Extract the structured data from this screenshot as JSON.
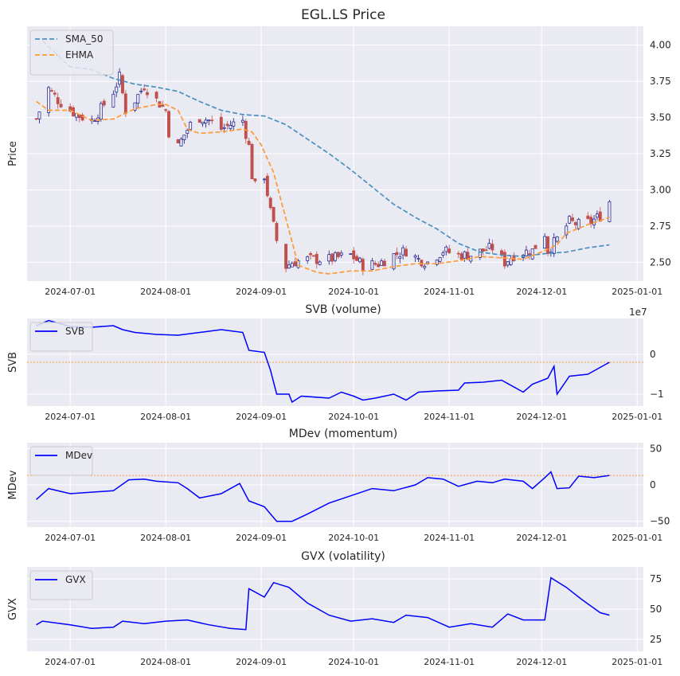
{
  "chart_data": [
    {
      "type": "candlestick",
      "title": "EGL.LS Price",
      "ylabel": "Price",
      "xlim": [
        "2024-06-17",
        "2025-01-03"
      ],
      "ylim": [
        2.37,
        4.13
      ],
      "x_ticks": [
        "2024-07-01",
        "2024-08-01",
        "2024-09-01",
        "2024-10-01",
        "2024-11-01",
        "2024-12-01",
        "2025-01-01"
      ],
      "y_ticks": [
        "2.50",
        "2.75",
        "3.00",
        "3.25",
        "3.50",
        "3.75",
        "4.00"
      ],
      "y_tick_values": [
        2.5,
        2.75,
        3.0,
        3.25,
        3.5,
        3.75,
        4.0
      ],
      "grid": true,
      "legend_position": "top-left",
      "colors": {
        "up": "#1a1a8c",
        "down": "#c0504d",
        "sma": "#4a90c2",
        "ehma": "#ff9933",
        "background": "#eaeaf2"
      },
      "close_knots": [
        [
          "2024-06-20",
          3.49
        ],
        [
          "2024-06-24",
          3.7
        ],
        [
          "2024-06-27",
          3.62
        ],
        [
          "2024-07-01",
          3.55
        ],
        [
          "2024-07-04",
          3.51
        ],
        [
          "2024-07-08",
          3.48
        ],
        [
          "2024-07-11",
          3.56
        ],
        [
          "2024-07-15",
          3.68
        ],
        [
          "2024-07-17",
          3.78
        ],
        [
          "2024-07-19",
          3.55
        ],
        [
          "2024-07-22",
          3.62
        ],
        [
          "2024-07-25",
          3.72
        ],
        [
          "2024-07-29",
          3.62
        ],
        [
          "2024-08-01",
          3.55
        ],
        [
          "2024-08-02",
          3.4
        ],
        [
          "2024-08-05",
          3.3
        ],
        [
          "2024-08-07",
          3.38
        ],
        [
          "2024-08-09",
          3.45
        ],
        [
          "2024-08-12",
          3.5
        ],
        [
          "2024-08-15",
          3.48
        ],
        [
          "2024-08-19",
          3.42
        ],
        [
          "2024-08-22",
          3.45
        ],
        [
          "2024-08-26",
          3.48
        ],
        [
          "2024-08-28",
          3.3
        ],
        [
          "2024-08-29",
          3.1
        ],
        [
          "2024-08-31",
          2.95
        ],
        [
          "2024-09-02",
          3.1
        ],
        [
          "2024-09-04",
          2.85
        ],
        [
          "2024-09-06",
          2.65
        ],
        [
          "2024-09-09",
          2.47
        ],
        [
          "2024-09-11",
          2.5
        ],
        [
          "2024-09-16",
          2.52
        ],
        [
          "2024-09-23",
          2.52
        ],
        [
          "2024-09-30",
          2.55
        ],
        [
          "2024-10-04",
          2.48
        ],
        [
          "2024-10-09",
          2.49
        ],
        [
          "2024-10-14",
          2.55
        ],
        [
          "2024-10-18",
          2.58
        ],
        [
          "2024-10-22",
          2.52
        ],
        [
          "2024-10-25",
          2.5
        ],
        [
          "2024-10-30",
          2.58
        ],
        [
          "2024-11-04",
          2.55
        ],
        [
          "2024-11-08",
          2.55
        ],
        [
          "2024-11-12",
          2.58
        ],
        [
          "2024-11-15",
          2.6
        ],
        [
          "2024-11-19",
          2.5
        ],
        [
          "2024-11-22",
          2.55
        ],
        [
          "2024-11-25",
          2.57
        ],
        [
          "2024-11-28",
          2.58
        ],
        [
          "2024-12-02",
          2.7
        ],
        [
          "2024-12-03",
          2.58
        ],
        [
          "2024-12-06",
          2.66
        ],
        [
          "2024-12-10",
          2.78
        ],
        [
          "2024-12-13",
          2.76
        ],
        [
          "2024-12-17",
          2.78
        ],
        [
          "2024-12-20",
          2.82
        ],
        [
          "2024-12-23",
          2.92
        ]
      ],
      "series": [
        {
          "name": "SMA_50",
          "style": "dashed",
          "points": [
            [
              "2024-06-22",
              4.03
            ],
            [
              "2024-07-01",
              3.85
            ],
            [
              "2024-07-08",
              3.83
            ],
            [
              "2024-07-15",
              3.77
            ],
            [
              "2024-07-22",
              3.73
            ],
            [
              "2024-07-29",
              3.71
            ],
            [
              "2024-08-05",
              3.68
            ],
            [
              "2024-08-12",
              3.61
            ],
            [
              "2024-08-19",
              3.55
            ],
            [
              "2024-08-26",
              3.52
            ],
            [
              "2024-09-02",
              3.51
            ],
            [
              "2024-09-09",
              3.45
            ],
            [
              "2024-09-16",
              3.35
            ],
            [
              "2024-09-23",
              3.25
            ],
            [
              "2024-09-30",
              3.14
            ],
            [
              "2024-10-07",
              3.02
            ],
            [
              "2024-10-14",
              2.9
            ],
            [
              "2024-10-21",
              2.81
            ],
            [
              "2024-10-28",
              2.73
            ],
            [
              "2024-11-04",
              2.63
            ],
            [
              "2024-11-11",
              2.57
            ],
            [
              "2024-11-18",
              2.55
            ],
            [
              "2024-11-25",
              2.54
            ],
            [
              "2024-12-02",
              2.56
            ],
            [
              "2024-12-09",
              2.57
            ],
            [
              "2024-12-16",
              2.6
            ],
            [
              "2024-12-23",
              2.62
            ]
          ]
        },
        {
          "name": "EHMA",
          "style": "dashed",
          "points": [
            [
              "2024-06-20",
              3.61
            ],
            [
              "2024-06-24",
              3.55
            ],
            [
              "2024-07-01",
              3.55
            ],
            [
              "2024-07-08",
              3.48
            ],
            [
              "2024-07-15",
              3.49
            ],
            [
              "2024-07-22",
              3.56
            ],
            [
              "2024-07-29",
              3.59
            ],
            [
              "2024-08-01",
              3.59
            ],
            [
              "2024-08-05",
              3.55
            ],
            [
              "2024-08-08",
              3.42
            ],
            [
              "2024-08-12",
              3.39
            ],
            [
              "2024-08-19",
              3.4
            ],
            [
              "2024-08-26",
              3.42
            ],
            [
              "2024-08-29",
              3.4
            ],
            [
              "2024-09-01",
              3.31
            ],
            [
              "2024-09-05",
              3.12
            ],
            [
              "2024-09-09",
              2.8
            ],
            [
              "2024-09-13",
              2.48
            ],
            [
              "2024-09-19",
              2.43
            ],
            [
              "2024-09-23",
              2.42
            ],
            [
              "2024-09-30",
              2.44
            ],
            [
              "2024-10-07",
              2.44
            ],
            [
              "2024-10-14",
              2.47
            ],
            [
              "2024-10-21",
              2.49
            ],
            [
              "2024-10-28",
              2.49
            ],
            [
              "2024-11-04",
              2.51
            ],
            [
              "2024-11-11",
              2.54
            ],
            [
              "2024-11-18",
              2.53
            ],
            [
              "2024-11-25",
              2.52
            ],
            [
              "2024-12-02",
              2.58
            ],
            [
              "2024-12-06",
              2.62
            ],
            [
              "2024-12-09",
              2.7
            ],
            [
              "2024-12-16",
              2.76
            ],
            [
              "2024-12-23",
              2.81
            ]
          ]
        }
      ]
    },
    {
      "type": "line",
      "title": "SVB (volume)",
      "ylabel": "SVB",
      "ylim": [
        -1.3,
        0.9
      ],
      "y_ticks": [
        "0",
        "−1"
      ],
      "y_tick_values": [
        0,
        -1
      ],
      "scale_label": "1e7",
      "reference_line": -0.2,
      "legend_position": "top-left",
      "series": [
        {
          "name": "SVB",
          "color": "#0000ff",
          "points": [
            [
              "2024-06-20",
              0.72
            ],
            [
              "2024-06-24",
              0.85
            ],
            [
              "2024-07-01",
              0.7
            ],
            [
              "2024-07-08",
              0.68
            ],
            [
              "2024-07-15",
              0.72
            ],
            [
              "2024-07-18",
              0.62
            ],
            [
              "2024-07-22",
              0.55
            ],
            [
              "2024-07-29",
              0.5
            ],
            [
              "2024-08-05",
              0.48
            ],
            [
              "2024-08-12",
              0.55
            ],
            [
              "2024-08-19",
              0.62
            ],
            [
              "2024-08-26",
              0.55
            ],
            [
              "2024-08-28",
              0.1
            ],
            [
              "2024-09-02",
              0.05
            ],
            [
              "2024-09-04",
              -0.4
            ],
            [
              "2024-09-06",
              -1.0
            ],
            [
              "2024-09-10",
              -1.0
            ],
            [
              "2024-09-11",
              -1.2
            ],
            [
              "2024-09-14",
              -1.05
            ],
            [
              "2024-09-23",
              -1.1
            ],
            [
              "2024-09-27",
              -0.95
            ],
            [
              "2024-10-01",
              -1.05
            ],
            [
              "2024-10-04",
              -1.15
            ],
            [
              "2024-10-08",
              -1.1
            ],
            [
              "2024-10-14",
              -1.0
            ],
            [
              "2024-10-18",
              -1.15
            ],
            [
              "2024-10-22",
              -0.95
            ],
            [
              "2024-10-28",
              -0.92
            ],
            [
              "2024-11-04",
              -0.9
            ],
            [
              "2024-11-06",
              -0.72
            ],
            [
              "2024-11-12",
              -0.7
            ],
            [
              "2024-11-18",
              -0.65
            ],
            [
              "2024-11-25",
              -0.95
            ],
            [
              "2024-11-28",
              -0.75
            ],
            [
              "2024-12-03",
              -0.6
            ],
            [
              "2024-12-05",
              -0.3
            ],
            [
              "2024-12-06",
              -1.0
            ],
            [
              "2024-12-10",
              -0.55
            ],
            [
              "2024-12-16",
              -0.5
            ],
            [
              "2024-12-23",
              -0.2
            ]
          ]
        }
      ]
    },
    {
      "type": "line",
      "title": "MDev (momentum)",
      "ylabel": "MDev",
      "ylim": [
        -58,
        58
      ],
      "y_ticks": [
        "50",
        "0",
        "−50"
      ],
      "y_tick_values": [
        50,
        0,
        -50
      ],
      "reference_line": 13,
      "legend_position": "top-left",
      "series": [
        {
          "name": "MDev",
          "color": "#0000ff",
          "points": [
            [
              "2024-06-20",
              -20
            ],
            [
              "2024-06-24",
              -5
            ],
            [
              "2024-07-01",
              -12
            ],
            [
              "2024-07-08",
              -10
            ],
            [
              "2024-07-15",
              -8
            ],
            [
              "2024-07-20",
              7
            ],
            [
              "2024-07-25",
              8
            ],
            [
              "2024-07-29",
              5
            ],
            [
              "2024-08-05",
              3
            ],
            [
              "2024-08-08",
              -5
            ],
            [
              "2024-08-12",
              -18
            ],
            [
              "2024-08-19",
              -12
            ],
            [
              "2024-08-25",
              2
            ],
            [
              "2024-08-28",
              -22
            ],
            [
              "2024-09-02",
              -30
            ],
            [
              "2024-09-06",
              -50
            ],
            [
              "2024-09-11",
              -50
            ],
            [
              "2024-09-16",
              -40
            ],
            [
              "2024-09-23",
              -25
            ],
            [
              "2024-09-30",
              -15
            ],
            [
              "2024-10-07",
              -5
            ],
            [
              "2024-10-14",
              -8
            ],
            [
              "2024-10-21",
              0
            ],
            [
              "2024-10-25",
              10
            ],
            [
              "2024-10-30",
              8
            ],
            [
              "2024-11-04",
              -2
            ],
            [
              "2024-11-10",
              5
            ],
            [
              "2024-11-15",
              3
            ],
            [
              "2024-11-19",
              8
            ],
            [
              "2024-11-25",
              5
            ],
            [
              "2024-11-28",
              -5
            ],
            [
              "2024-12-02",
              10
            ],
            [
              "2024-12-04",
              18
            ],
            [
              "2024-12-06",
              -5
            ],
            [
              "2024-12-10",
              -4
            ],
            [
              "2024-12-13",
              12
            ],
            [
              "2024-12-18",
              10
            ],
            [
              "2024-12-23",
              13
            ]
          ]
        }
      ]
    },
    {
      "type": "line",
      "title": "GVX (volatility)",
      "ylabel": "GVX",
      "ylim": [
        15,
        85
      ],
      "y_ticks": [
        "75",
        "50",
        "25"
      ],
      "y_tick_values": [
        75,
        50,
        25
      ],
      "legend_position": "top-left",
      "series": [
        {
          "name": "GVX",
          "color": "#0000ff",
          "points": [
            [
              "2024-06-20",
              37
            ],
            [
              "2024-06-22",
              40
            ],
            [
              "2024-07-01",
              37
            ],
            [
              "2024-07-08",
              34
            ],
            [
              "2024-07-15",
              35
            ],
            [
              "2024-07-18",
              40
            ],
            [
              "2024-07-25",
              38
            ],
            [
              "2024-08-01",
              40
            ],
            [
              "2024-08-08",
              41
            ],
            [
              "2024-08-15",
              37
            ],
            [
              "2024-08-22",
              34
            ],
            [
              "2024-08-27",
              33
            ],
            [
              "2024-08-28",
              67
            ],
            [
              "2024-09-02",
              60
            ],
            [
              "2024-09-05",
              72
            ],
            [
              "2024-09-10",
              68
            ],
            [
              "2024-09-16",
              55
            ],
            [
              "2024-09-23",
              45
            ],
            [
              "2024-09-30",
              40
            ],
            [
              "2024-10-07",
              42
            ],
            [
              "2024-10-14",
              39
            ],
            [
              "2024-10-18",
              45
            ],
            [
              "2024-10-25",
              43
            ],
            [
              "2024-11-01",
              35
            ],
            [
              "2024-11-08",
              38
            ],
            [
              "2024-11-15",
              35
            ],
            [
              "2024-11-20",
              46
            ],
            [
              "2024-11-25",
              41
            ],
            [
              "2024-12-02",
              41
            ],
            [
              "2024-12-04",
              76
            ],
            [
              "2024-12-09",
              68
            ],
            [
              "2024-12-14",
              58
            ],
            [
              "2024-12-20",
              47
            ],
            [
              "2024-12-23",
              45
            ]
          ]
        }
      ]
    }
  ]
}
